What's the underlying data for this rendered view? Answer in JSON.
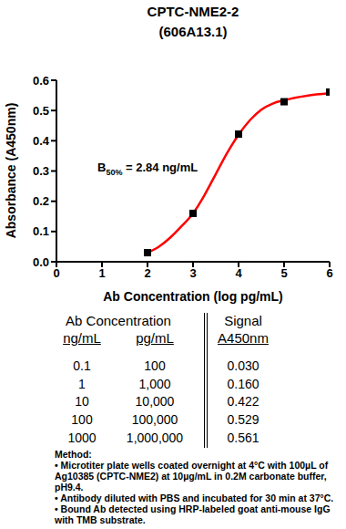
{
  "chart_data": {
    "type": "scatter",
    "title": "CPTC-NME2-2",
    "subtitle": "(606A13.1)",
    "x_label": "Ab Concentration (log pg/mL)",
    "y_label": "Absorbance (A450nm)",
    "annotation": {
      "text": "B",
      "subscript": "50%",
      "suffix": " = 2.84 ng/mL"
    },
    "xlim": [
      0,
      6
    ],
    "xticks": [
      0,
      1,
      2,
      3,
      4,
      5,
      6
    ],
    "ylim": [
      0,
      0.6
    ],
    "yticks": [
      {
        "value": 0,
        "label": "0.0"
      },
      0.1,
      0.2,
      0.3,
      0.4,
      0.5,
      0.6
    ],
    "grid": false,
    "series": [
      {
        "type": "scatter",
        "marker": "square",
        "color": "#000000",
        "x": [
          2,
          3,
          4,
          5,
          6
        ],
        "values": [
          0.03,
          0.16,
          0.422,
          0.529,
          0.561
        ]
      },
      {
        "type": "line",
        "marker": "none",
        "color": "#ff0000",
        "x": [
          2,
          2.25,
          2.5,
          2.75,
          3,
          3.25,
          3.5,
          3.75,
          4,
          4.25,
          4.5,
          4.75,
          5,
          5.5,
          6
        ],
        "values": [
          0.03,
          0.05,
          0.08,
          0.118,
          0.16,
          0.22,
          0.29,
          0.36,
          0.42,
          0.468,
          0.503,
          0.523,
          0.534,
          0.549,
          0.557
        ]
      }
    ]
  },
  "table": {
    "title": "Ab Concentration",
    "columns": [
      "ng/mL",
      "pg/mL"
    ],
    "signal_title": "Signal",
    "signal_column": "A450nm",
    "rows": [
      [
        "0.1",
        "100",
        "0.030"
      ],
      [
        "1",
        "1,000",
        "0.160"
      ],
      [
        "10",
        "10,000",
        "0.422"
      ],
      [
        "100",
        "100,000",
        "0.529"
      ],
      [
        "1000",
        "1,000,000",
        "0.561"
      ]
    ]
  },
  "method": {
    "title": "Method:",
    "items": [
      "• Microtiter plate wells coated overnight at 4°C  with 100µL of Ag10385 (CPTC-NME2) at 10µg/mL in 0.2M carbonate buffer, pH9.4.",
      "• Antibody diluted with PBS and incubated for 30 min at 37°C.",
      "• Bound Ab detected using HRP-labeled goat anti-mouse IgG with TMB substrate."
    ]
  }
}
